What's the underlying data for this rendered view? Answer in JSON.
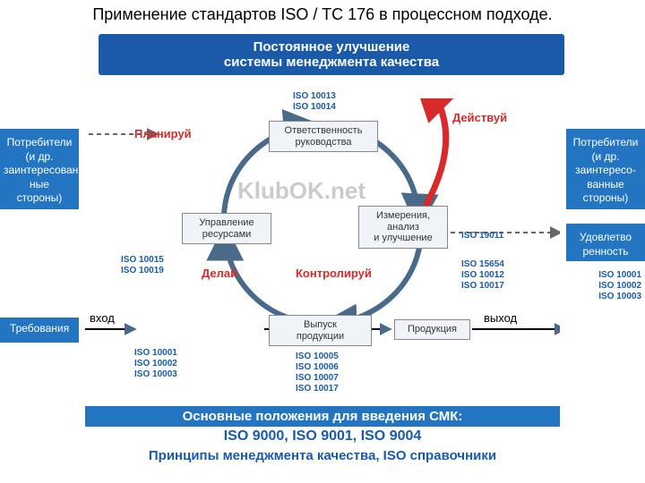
{
  "title": "Применение стандартов ISO / TC 176 в процессном подходе.",
  "topBanner": "Постоянное улучшение\nсистемы менеджмента качества",
  "leftTop": "Потребители\n(и др.\nзаинтересован\nные\nстороны)",
  "leftBot": "Требования",
  "rightTop": "Потребители\n(и др.\nзаинтересо-\nванные\nстороны)",
  "rightBot": "Удовлетво\nренность",
  "pdca": {
    "plan": "Планируй",
    "do": "Делай",
    "check": "Контролируй",
    "act": "Действуй"
  },
  "nodes": {
    "mgmt": "Ответственность\nруководства",
    "resources": "Управление\nресурсами",
    "measure": "Измерения,\nанализ\nи улучшение",
    "output": "Выпуск\nпродукции",
    "product": "Продукция"
  },
  "iso": {
    "topCenter": "ISO 10013\nISO 10014",
    "leftMid": "ISO 10015\nISO 10019",
    "leftBot": "ISO 10001\nISO 10002\nISO 10003",
    "botCenter": "ISO 10005\nISO 10006\nISO 10007\nISO 10017",
    "right1": "ISO 19011",
    "right2": "ISO 15654\nISO 10012\nISO 10017",
    "sideRight": "ISO 10001\nISO 10002\nISO 10003"
  },
  "flow": {
    "in": "вход",
    "out": "выход"
  },
  "watermark": "KlubOK.net",
  "bottom": {
    "line1": "Основные положения для введения СМК:",
    "line2": "ISO 9000, ISO 9001, ISO 9004",
    "line3": "Принципы менеджмента качества, ISO справочники"
  },
  "colors": {
    "bannerBg": "#1a5aa8",
    "sideBg": "#2375c1",
    "isoText": "#1a5aa8",
    "redText": "#d82a2a",
    "circleStroke": "#4a6a8a",
    "arrowRed": "#d82a2a"
  }
}
